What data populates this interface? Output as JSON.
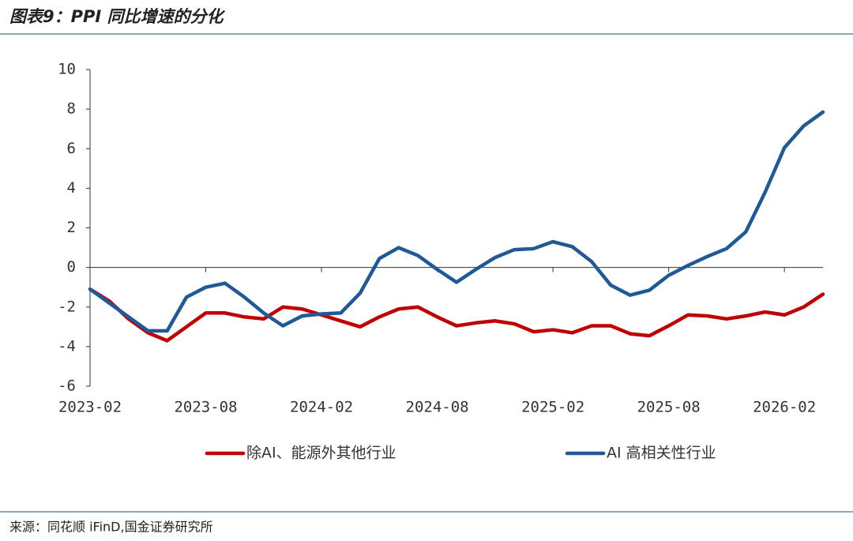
{
  "chart_data": {
    "type": "line",
    "title": "图表9：PPI 同比增速的分化",
    "source": "来源：同花顺 iFinD,国金证券研究所",
    "categories": [
      "2023-02",
      null,
      null,
      null,
      null,
      null,
      "2023-08",
      null,
      null,
      null,
      null,
      null,
      "2024-02",
      null,
      null,
      null,
      null,
      null,
      "2024-08",
      null,
      null,
      null,
      null,
      null,
      "2025-02",
      null,
      null,
      null,
      null,
      null,
      "2025-08",
      null,
      null,
      null,
      null,
      null,
      "2026-02",
      null,
      null
    ],
    "series": [
      {
        "name": "除AI、能源外其他行业",
        "color": "#c00000",
        "values": [
          -1.1,
          -1.7,
          -2.6,
          -3.3,
          -3.7,
          -3.0,
          -2.3,
          -2.3,
          -2.5,
          -2.6,
          -2.0,
          -2.1,
          -2.4,
          -2.7,
          -3.0,
          -2.5,
          -2.1,
          -2.0,
          -2.5,
          -2.95,
          -2.8,
          -2.7,
          -2.85,
          -3.25,
          -3.15,
          -3.3,
          -2.95,
          -2.95,
          -3.35,
          -3.45,
          -2.95,
          -2.4,
          -2.45,
          -2.6,
          -2.45,
          -2.25,
          -2.4,
          -2.0,
          -1.35
        ]
      },
      {
        "name": "AI 高相关性行业",
        "color": "#1f5a96",
        "values": [
          -1.1,
          -1.8,
          -2.5,
          -3.2,
          -3.2,
          -1.5,
          -1.0,
          -0.8,
          -1.5,
          -2.3,
          -2.95,
          -2.45,
          -2.35,
          -2.3,
          -1.3,
          0.45,
          1.0,
          0.6,
          -0.1,
          -0.75,
          -0.1,
          0.5,
          0.9,
          0.95,
          1.3,
          1.05,
          0.3,
          -0.9,
          -1.4,
          -1.15,
          -0.4,
          0.1,
          0.55,
          0.95,
          1.8,
          3.8,
          6.05,
          7.15,
          7.85
        ]
      }
    ],
    "ylim": [
      -6,
      10
    ],
    "yticks": [
      -6,
      -4,
      -2,
      0,
      2,
      4,
      6,
      8,
      10
    ]
  }
}
